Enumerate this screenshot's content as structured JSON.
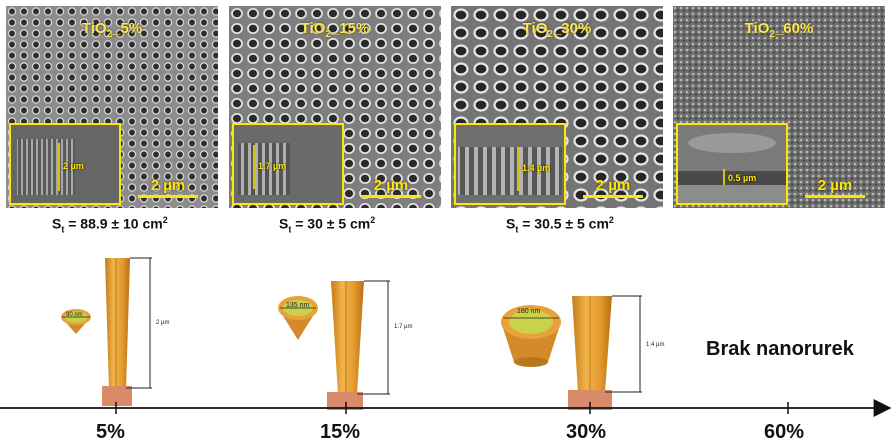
{
  "panels": [
    {
      "id": "p5",
      "title_main": "TiO",
      "title_sub": "2",
      "title_rest": "_5%",
      "inset_thickness": "2 µm",
      "scale": "2 µm"
    },
    {
      "id": "p15",
      "title_main": "TiO",
      "title_sub": "2",
      "title_rest": "_15%",
      "inset_thickness": "1.7 µm",
      "scale": "2 µm"
    },
    {
      "id": "p30",
      "title_main": "TiO",
      "title_sub": "2",
      "title_rest": "_30%",
      "inset_thickness": "1.4 µm",
      "scale": "2 µm"
    },
    {
      "id": "p60",
      "title_main": "TiO",
      "title_sub": "2",
      "title_rest": "_60%",
      "inset_thickness": "0.5 µm",
      "scale": "2 µm"
    }
  ],
  "surface": [
    {
      "prefix": "S",
      "sub": "t",
      "value": " = 88.9 ± 10 cm",
      "sup": "2"
    },
    {
      "prefix": "S",
      "sub": "t",
      "value": " = 30 ± 5 cm",
      "sup": "2"
    },
    {
      "prefix": "S",
      "sub": "t",
      "value": " = 30.5 ± 5 cm",
      "sup": "2"
    }
  ],
  "tubes": [
    {
      "diameter": "90 nm",
      "height": "2 µm"
    },
    {
      "diameter": "135 nm",
      "height": "1.7 µm"
    },
    {
      "diameter": "180 nm",
      "height": "1.4 µm"
    }
  ],
  "no_tubes_label": "Brak nanorurek",
  "axis_ticks": [
    "5%",
    "15%",
    "30%",
    "60%"
  ],
  "colors": {
    "tube": "#e8a23a",
    "tube_dark": "#c07a1c",
    "tube_inner": "#c8d24a",
    "base": "#d98a68",
    "accent": "#ffe600"
  }
}
